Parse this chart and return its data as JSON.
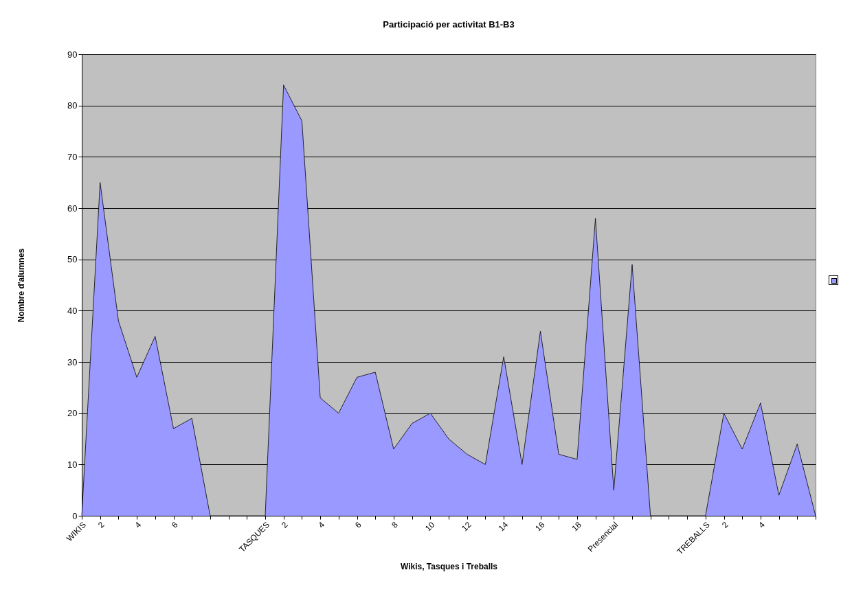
{
  "chart_data": {
    "type": "area",
    "title": "Participació per activitat B1-B3",
    "xlabel": "Wikis, Tasques i Treballs",
    "ylabel": "Nombre d'alumnes",
    "categories": [
      "WIKIS",
      "2",
      null,
      "4",
      null,
      "6",
      null,
      null,
      null,
      null,
      "TASQUES",
      "2",
      null,
      "4",
      null,
      "6",
      null,
      "8",
      null,
      "10",
      null,
      "12",
      null,
      "14",
      null,
      "16",
      null,
      "18",
      null,
      "Presencial",
      null,
      null,
      null,
      null,
      "TREBALLS",
      "2",
      null,
      "4",
      null,
      null,
      null
    ],
    "series": [
      {
        "color": "#9999ff",
        "values": [
          0,
          65,
          38,
          27,
          35,
          17,
          19,
          0,
          0,
          0,
          0,
          84,
          77,
          23,
          20,
          27,
          28,
          13,
          18,
          20,
          15,
          12,
          10,
          31,
          10,
          36,
          12,
          11,
          58,
          5,
          49,
          0,
          0,
          0,
          0,
          20,
          13,
          22,
          4,
          14,
          0
        ]
      }
    ],
    "ylim": [
      0,
      90
    ],
    "yticks": [
      0,
      10,
      20,
      30,
      40,
      50,
      60,
      70,
      80,
      90
    ],
    "grid": "y"
  }
}
